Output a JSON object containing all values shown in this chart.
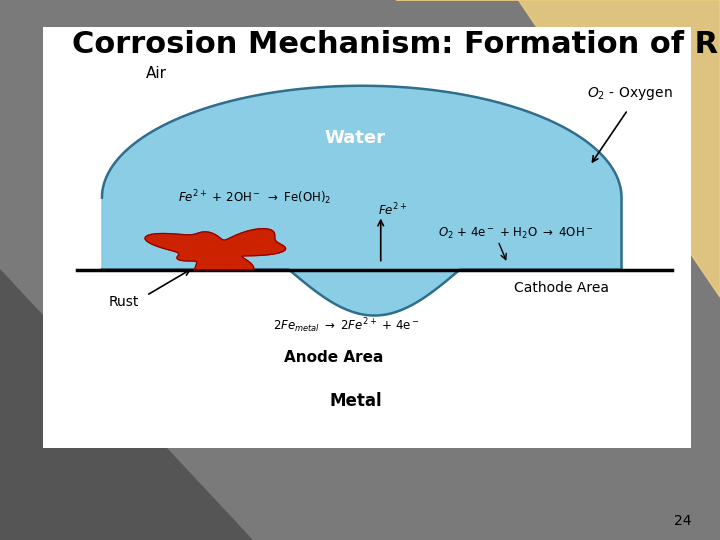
{
  "title": "Corrosion Mechanism: Formation of Rust",
  "slide_number": "24",
  "title_fontsize": 22,
  "water_color": "#7EC8E3",
  "water_edge_color": "#2F6E8C",
  "rust_color": "#CC2200",
  "labels": {
    "air": "Air",
    "water": "Water",
    "rust": "Rust",
    "cathode": "Cathode Area",
    "anode_area": "Anode Area",
    "metal": "Metal"
  }
}
